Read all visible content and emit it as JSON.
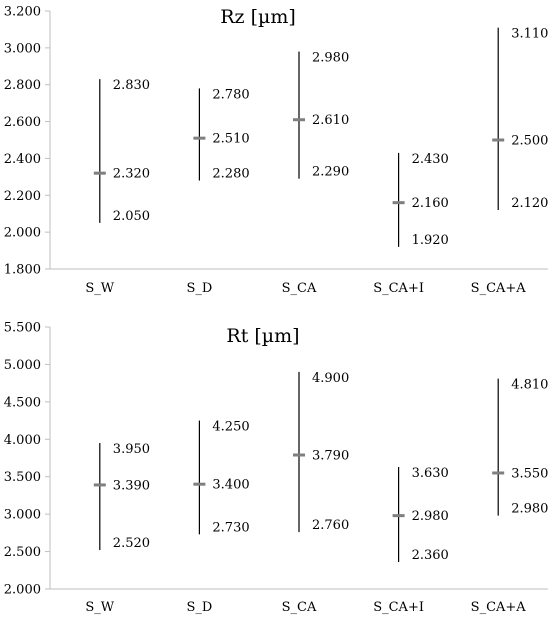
{
  "chart_data": [
    {
      "type": "stock",
      "title": "Rz [µm]",
      "categories": [
        "S_W",
        "S_D",
        "S_CA",
        "S_CA+I",
        "S_CA+A"
      ],
      "series": [
        {
          "name": "max",
          "values": [
            2.83,
            2.78,
            2.98,
            2.43,
            3.11
          ]
        },
        {
          "name": "mean",
          "values": [
            2.32,
            2.51,
            2.61,
            2.16,
            2.5
          ]
        },
        {
          "name": "min",
          "values": [
            2.05,
            2.28,
            2.29,
            1.92,
            2.12
          ]
        }
      ],
      "labels": {
        "max": [
          "2.830",
          "2.780",
          "2.980",
          "2.430",
          "3.110"
        ],
        "mean": [
          "2.320",
          "2.510",
          "2.610",
          "2.160",
          "2.500"
        ],
        "min": [
          "2.050",
          "2.280",
          "2.290",
          "1.920",
          "2.120"
        ]
      },
      "ylim": [
        1.8,
        3.2
      ],
      "yticks": [
        "1.800",
        "2.000",
        "2.200",
        "2.400",
        "2.600",
        "2.800",
        "3.000",
        "3.200"
      ],
      "grid": false,
      "colors": {
        "range_line": "#000000",
        "mean_marker": "#7f7f7f",
        "axis": "#bfbfbf"
      }
    },
    {
      "type": "stock",
      "title": "Rt [µm]",
      "categories": [
        "S_W",
        "S_D",
        "S_CA",
        "S_CA+I",
        "S_CA+A"
      ],
      "series": [
        {
          "name": "max",
          "values": [
            3.95,
            4.25,
            4.9,
            3.63,
            4.81
          ]
        },
        {
          "name": "mean",
          "values": [
            3.39,
            3.4,
            3.79,
            2.98,
            3.55
          ]
        },
        {
          "name": "min",
          "values": [
            2.52,
            2.73,
            2.76,
            2.36,
            2.98
          ]
        }
      ],
      "labels": {
        "max": [
          "3.950",
          "4.250",
          "4.900",
          "3.630",
          "4.810"
        ],
        "mean": [
          "3.390",
          "3.400",
          "3.790",
          "2.980",
          "3.550"
        ],
        "min": [
          "2.520",
          "2.730",
          "2.760",
          "2.360",
          "2.980"
        ]
      },
      "ylim": [
        2.0,
        5.5
      ],
      "yticks": [
        "2.000",
        "2.500",
        "3.000",
        "3.500",
        "4.000",
        "4.500",
        "5.000",
        "5.500"
      ],
      "grid": false,
      "colors": {
        "range_line": "#000000",
        "mean_marker": "#7f7f7f",
        "axis": "#bfbfbf"
      }
    }
  ]
}
